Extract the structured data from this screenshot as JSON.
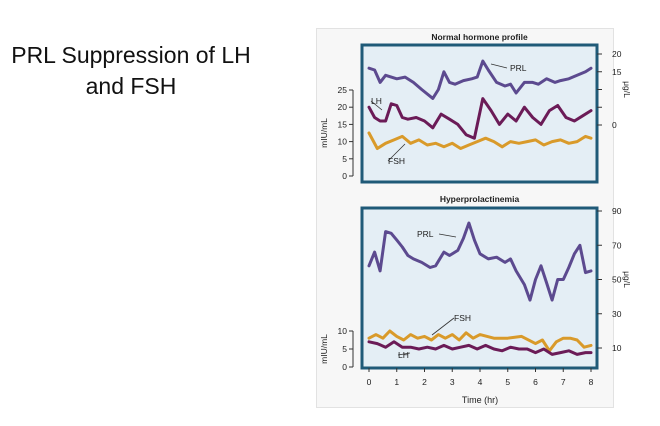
{
  "slide": {
    "title_line1": "PRL Suppression of LH",
    "title_line2": "and FSH"
  },
  "colors": {
    "prl": "#5c4a8f",
    "lh": "#6b1b57",
    "fsh": "#d99a2a",
    "panel_bg": "#e4eef5",
    "panel_border": "#1f5a78"
  },
  "chart_data": [
    {
      "type": "line",
      "title": "Normal hormone profile",
      "xlim": [
        0,
        8
      ],
      "y_left": {
        "label": "mIU/mL",
        "range": [
          0,
          25
        ],
        "ticks": [
          0,
          5,
          10,
          15,
          20,
          25
        ]
      },
      "y_right": {
        "label": "μg/L",
        "range": [
          0,
          20
        ],
        "ticks": [
          0,
          5,
          10,
          15,
          20
        ],
        "tick_labels": [
          "0",
          "15",
          "20"
        ]
      },
      "series": [
        {
          "name": "PRL",
          "axis": "right",
          "color": "#5c4a8f",
          "x": [
            0,
            0.2,
            0.4,
            0.6,
            0.8,
            1.0,
            1.3,
            1.6,
            1.9,
            2.3,
            2.5,
            2.7,
            2.9,
            3.1,
            3.4,
            3.7,
            3.9,
            4.1,
            4.3,
            4.6,
            4.9,
            5.1,
            5.3,
            5.6,
            5.9,
            6.1,
            6.4,
            6.7,
            6.9,
            7.2,
            7.5,
            7.8,
            8.0
          ],
          "y": [
            16,
            15.5,
            12,
            14,
            13.5,
            13,
            13.5,
            12,
            10,
            7.5,
            10,
            15,
            12,
            11.5,
            12.5,
            13,
            13.5,
            18,
            15.5,
            12,
            11,
            11.5,
            9,
            12,
            12,
            11.5,
            13,
            12,
            12.5,
            13,
            14,
            15,
            16
          ]
        },
        {
          "name": "LH",
          "axis": "left",
          "color": "#6b1b57",
          "x": [
            0,
            0.2,
            0.4,
            0.6,
            0.8,
            1.0,
            1.2,
            1.4,
            1.7,
            2.0,
            2.3,
            2.6,
            2.9,
            3.2,
            3.5,
            3.8,
            4.1,
            4.4,
            4.7,
            5.0,
            5.3,
            5.6,
            5.9,
            6.2,
            6.5,
            6.8,
            7.1,
            7.4,
            7.7,
            8.0
          ],
          "y": [
            20,
            17,
            16,
            16,
            21,
            20.5,
            17,
            16.5,
            17,
            16,
            14,
            18,
            16.5,
            15,
            12,
            11,
            22.5,
            19,
            15,
            18,
            16,
            20,
            17,
            15,
            19,
            20.5,
            17,
            16,
            17.5,
            19
          ]
        },
        {
          "name": "FSH",
          "axis": "left",
          "color": "#d99a2a",
          "x": [
            0,
            0.3,
            0.6,
            0.9,
            1.2,
            1.5,
            1.8,
            2.1,
            2.4,
            2.7,
            3.0,
            3.3,
            3.6,
            3.9,
            4.2,
            4.5,
            4.8,
            5.1,
            5.4,
            5.7,
            6.0,
            6.3,
            6.6,
            6.9,
            7.2,
            7.5,
            7.8,
            8.0
          ],
          "y": [
            12.5,
            8,
            9.5,
            10.5,
            11.5,
            9.5,
            10.5,
            9,
            9.5,
            8.5,
            9.5,
            8,
            9,
            10,
            11,
            10,
            8.5,
            10,
            9.5,
            10,
            10.5,
            9,
            10,
            10.5,
            9.5,
            10,
            11.5,
            11
          ]
        }
      ],
      "labels": {
        "prl": "PRL",
        "lh": "LH",
        "fsh": "FSH"
      }
    },
    {
      "type": "line",
      "title": "Hyperprolactinemia",
      "xlim": [
        0,
        8
      ],
      "xlabel": "Time (hr)",
      "x_ticks": [
        0,
        1,
        2,
        3,
        4,
        5,
        6,
        7,
        8
      ],
      "y_left": {
        "label": "mIU/mL",
        "range": [
          0,
          10
        ],
        "ticks": [
          0,
          5,
          10
        ]
      },
      "y_right": {
        "label": "μg/L",
        "range": [
          10,
          90
        ],
        "ticks": [
          10,
          30,
          50,
          70,
          90
        ]
      },
      "series": [
        {
          "name": "PRL",
          "axis": "right",
          "color": "#5c4a8f",
          "x": [
            0,
            0.2,
            0.4,
            0.6,
            0.8,
            1.0,
            1.2,
            1.4,
            1.6,
            1.9,
            2.2,
            2.4,
            2.7,
            2.9,
            3.2,
            3.4,
            3.6,
            3.8,
            4.0,
            4.3,
            4.6,
            4.9,
            5.1,
            5.3,
            5.6,
            5.8,
            6.0,
            6.2,
            6.4,
            6.6,
            6.8,
            7.0,
            7.2,
            7.4,
            7.6,
            7.8,
            8.0
          ],
          "y": [
            58,
            66,
            55,
            78,
            77,
            73,
            69,
            64,
            62,
            60,
            57,
            58,
            66,
            64,
            67,
            74,
            83,
            73,
            65,
            62,
            63,
            60,
            62,
            55,
            47,
            38,
            50,
            58,
            48,
            38,
            50,
            50,
            57,
            65,
            70,
            54,
            55
          ]
        },
        {
          "name": "FSH",
          "axis": "left",
          "color": "#d99a2a",
          "x": [
            0,
            0.25,
            0.5,
            0.75,
            1.0,
            1.25,
            1.5,
            1.75,
            2.0,
            2.25,
            2.5,
            2.75,
            3.0,
            3.25,
            3.5,
            3.75,
            4.0,
            4.5,
            5.0,
            5.5,
            6.0,
            6.25,
            6.5,
            6.75,
            7.0,
            7.25,
            7.5,
            7.75,
            8.0
          ],
          "y": [
            8,
            9,
            8,
            10,
            8.5,
            7.5,
            9,
            8,
            8.5,
            7.5,
            9,
            8,
            9,
            7.5,
            9.5,
            8,
            9,
            8,
            8,
            8.5,
            6.5,
            7.5,
            4.5,
            7,
            8,
            8,
            7.5,
            5.5,
            6
          ]
        },
        {
          "name": "LH",
          "axis": "left",
          "color": "#6b1b57",
          "x": [
            0,
            0.3,
            0.6,
            0.9,
            1.2,
            1.5,
            1.8,
            2.1,
            2.4,
            2.7,
            3.0,
            3.3,
            3.6,
            3.9,
            4.2,
            4.5,
            4.8,
            5.1,
            5.4,
            5.7,
            6.0,
            6.3,
            6.6,
            6.9,
            7.2,
            7.5,
            7.8,
            8.0
          ],
          "y": [
            7,
            6.5,
            5.5,
            7,
            5.5,
            5.5,
            5,
            5.5,
            5,
            6,
            5,
            5.5,
            6,
            5,
            6,
            5,
            4.5,
            5.5,
            5,
            5,
            4,
            5,
            3.5,
            4,
            4.5,
            3.5,
            4,
            4
          ]
        }
      ],
      "labels": {
        "prl": "PRL",
        "fsh": "FSH",
        "lh": "LH"
      }
    }
  ]
}
